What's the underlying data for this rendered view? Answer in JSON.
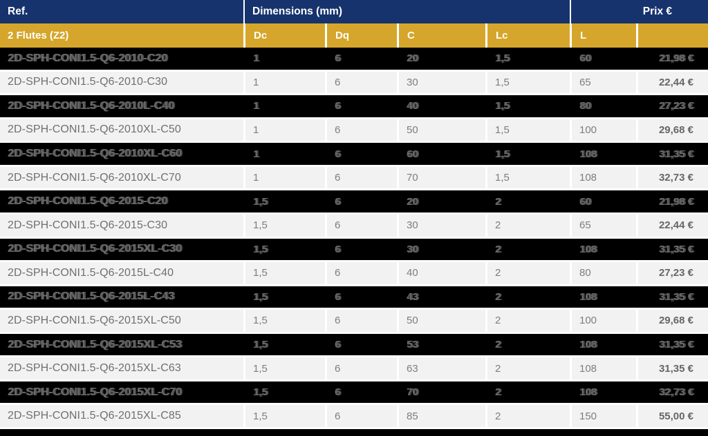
{
  "table": {
    "header": {
      "ref_label": "Ref.",
      "dimensions_label": "Dimensions (mm)",
      "price_label": "Prix €"
    },
    "subheader": {
      "group_label": "2 Flutes (Z2)",
      "dc": "Dc",
      "dq": "Dq",
      "c": "C",
      "lc": "Lc",
      "l": "L",
      "price": ""
    },
    "colors": {
      "header_blue": "#16336d",
      "header_gold": "#d5a62b",
      "row_dark": "#000000",
      "row_light": "#f2f2f2"
    },
    "rows": [
      {
        "ref": "2D-SPH-CONI1.5-Q6-2010-C20",
        "dc": "1",
        "dq": "6",
        "c": "20",
        "lc": "1,5",
        "l": "60",
        "price": "21,98 €"
      },
      {
        "ref": "2D-SPH-CONI1.5-Q6-2010-C30",
        "dc": "1",
        "dq": "6",
        "c": "30",
        "lc": "1,5",
        "l": "65",
        "price": "22,44 €"
      },
      {
        "ref": "2D-SPH-CONI1.5-Q6-2010L-C40",
        "dc": "1",
        "dq": "6",
        "c": "40",
        "lc": "1,5",
        "l": "80",
        "price": "27,23 €"
      },
      {
        "ref": "2D-SPH-CONI1.5-Q6-2010XL-C50",
        "dc": "1",
        "dq": "6",
        "c": "50",
        "lc": "1,5",
        "l": "100",
        "price": "29,68 €"
      },
      {
        "ref": "2D-SPH-CONI1.5-Q6-2010XL-C60",
        "dc": "1",
        "dq": "6",
        "c": "60",
        "lc": "1,5",
        "l": "108",
        "price": "31,35 €"
      },
      {
        "ref": "2D-SPH-CONI1.5-Q6-2010XL-C70",
        "dc": "1",
        "dq": "6",
        "c": "70",
        "lc": "1,5",
        "l": "108",
        "price": "32,73 €"
      },
      {
        "ref": "2D-SPH-CONI1.5-Q6-2015-C20",
        "dc": "1,5",
        "dq": "6",
        "c": "20",
        "lc": "2",
        "l": "60",
        "price": "21,98 €"
      },
      {
        "ref": "2D-SPH-CONI1.5-Q6-2015-C30",
        "dc": "1,5",
        "dq": "6",
        "c": "30",
        "lc": "2",
        "l": "65",
        "price": "22,44 €"
      },
      {
        "ref": "2D-SPH-CONI1.5-Q6-2015XL-C30",
        "dc": "1,5",
        "dq": "6",
        "c": "30",
        "lc": "2",
        "l": "108",
        "price": "31,35 €"
      },
      {
        "ref": "2D-SPH-CONI1.5-Q6-2015L-C40",
        "dc": "1,5",
        "dq": "6",
        "c": "40",
        "lc": "2",
        "l": "80",
        "price": "27,23 €"
      },
      {
        "ref": "2D-SPH-CONI1.5-Q6-2015L-C43",
        "dc": "1,5",
        "dq": "6",
        "c": "43",
        "lc": "2",
        "l": "108",
        "price": "31,35 €"
      },
      {
        "ref": "2D-SPH-CONI1.5-Q6-2015XL-C50",
        "dc": "1,5",
        "dq": "6",
        "c": "50",
        "lc": "2",
        "l": "100",
        "price": "29,68 €"
      },
      {
        "ref": "2D-SPH-CONI1.5-Q6-2015XL-C53",
        "dc": "1,5",
        "dq": "6",
        "c": "53",
        "lc": "2",
        "l": "108",
        "price": "31,35 €"
      },
      {
        "ref": "2D-SPH-CONI1.5-Q6-2015XL-C63",
        "dc": "1,5",
        "dq": "6",
        "c": "63",
        "lc": "2",
        "l": "108",
        "price": "31,35 €"
      },
      {
        "ref": "2D-SPH-CONI1.5-Q6-2015XL-C70",
        "dc": "1,5",
        "dq": "6",
        "c": "70",
        "lc": "2",
        "l": "108",
        "price": "32,73 €"
      },
      {
        "ref": "2D-SPH-CONI1.5-Q6-2015XL-C85",
        "dc": "1,5",
        "dq": "6",
        "c": "85",
        "lc": "2",
        "l": "150",
        "price": "55,00 €"
      }
    ]
  }
}
